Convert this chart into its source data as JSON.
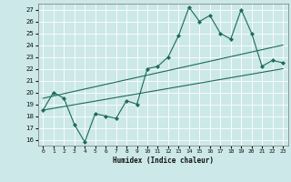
{
  "title": "",
  "xlabel": "Humidex (Indice chaleur)",
  "bg_color": "#cce8e8",
  "line_color": "#1a6b5a",
  "grid_color": "#ffffff",
  "x_ticks": [
    0,
    1,
    2,
    3,
    4,
    5,
    6,
    7,
    8,
    9,
    10,
    11,
    12,
    13,
    14,
    15,
    16,
    17,
    18,
    19,
    20,
    21,
    22,
    23
  ],
  "y_ticks": [
    16,
    17,
    18,
    19,
    20,
    21,
    22,
    23,
    24,
    25,
    26,
    27
  ],
  "xlim": [
    -0.5,
    23.5
  ],
  "ylim": [
    15.5,
    27.5
  ],
  "series1_x": [
    0,
    1,
    2,
    3,
    4,
    5,
    6,
    7,
    8,
    9,
    10,
    11,
    12,
    13,
    14,
    15,
    16,
    17,
    18,
    19,
    20,
    21,
    22,
    23
  ],
  "series1_y": [
    18.5,
    20.0,
    19.5,
    17.3,
    15.8,
    18.2,
    18.0,
    17.8,
    19.3,
    19.0,
    22.0,
    22.2,
    23.0,
    24.8,
    27.2,
    26.0,
    26.5,
    25.0,
    24.5,
    27.0,
    25.0,
    22.2,
    22.7,
    22.5
  ],
  "line2_x0": 0,
  "line2_y0": 19.5,
  "line2_x1": 23,
  "line2_y1": 24.0,
  "line3_x0": 0,
  "line3_y0": 18.5,
  "line3_x1": 23,
  "line3_y1": 22.0
}
